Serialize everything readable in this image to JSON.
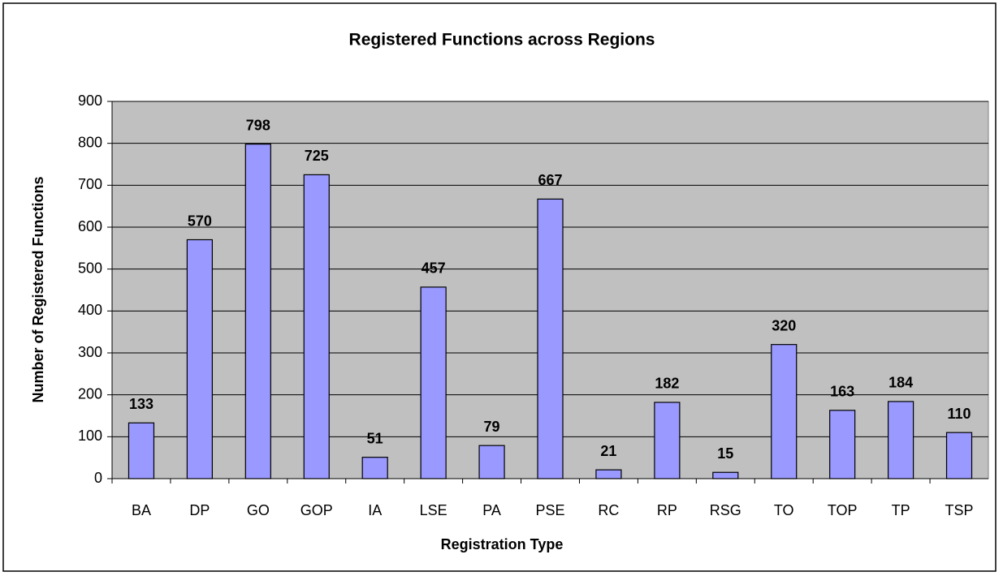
{
  "chart_data": {
    "type": "bar",
    "title": "Registered Functions across Regions",
    "x_label": "Registration Type",
    "y_label": "Number of Registered Functions",
    "categories": [
      "BA",
      "DP",
      "GO",
      "GOP",
      "IA",
      "LSE",
      "PA",
      "PSE",
      "RC",
      "RP",
      "RSG",
      "TO",
      "TOP",
      "TP",
      "TSP"
    ],
    "values": [
      133,
      570,
      798,
      725,
      51,
      457,
      79,
      667,
      21,
      182,
      15,
      320,
      163,
      184,
      110
    ],
    "color": "#9999ff",
    "ylim": [
      0,
      900
    ],
    "yticks": [
      0,
      100,
      200,
      300,
      400,
      500,
      600,
      700,
      800,
      900
    ],
    "grid": true
  }
}
